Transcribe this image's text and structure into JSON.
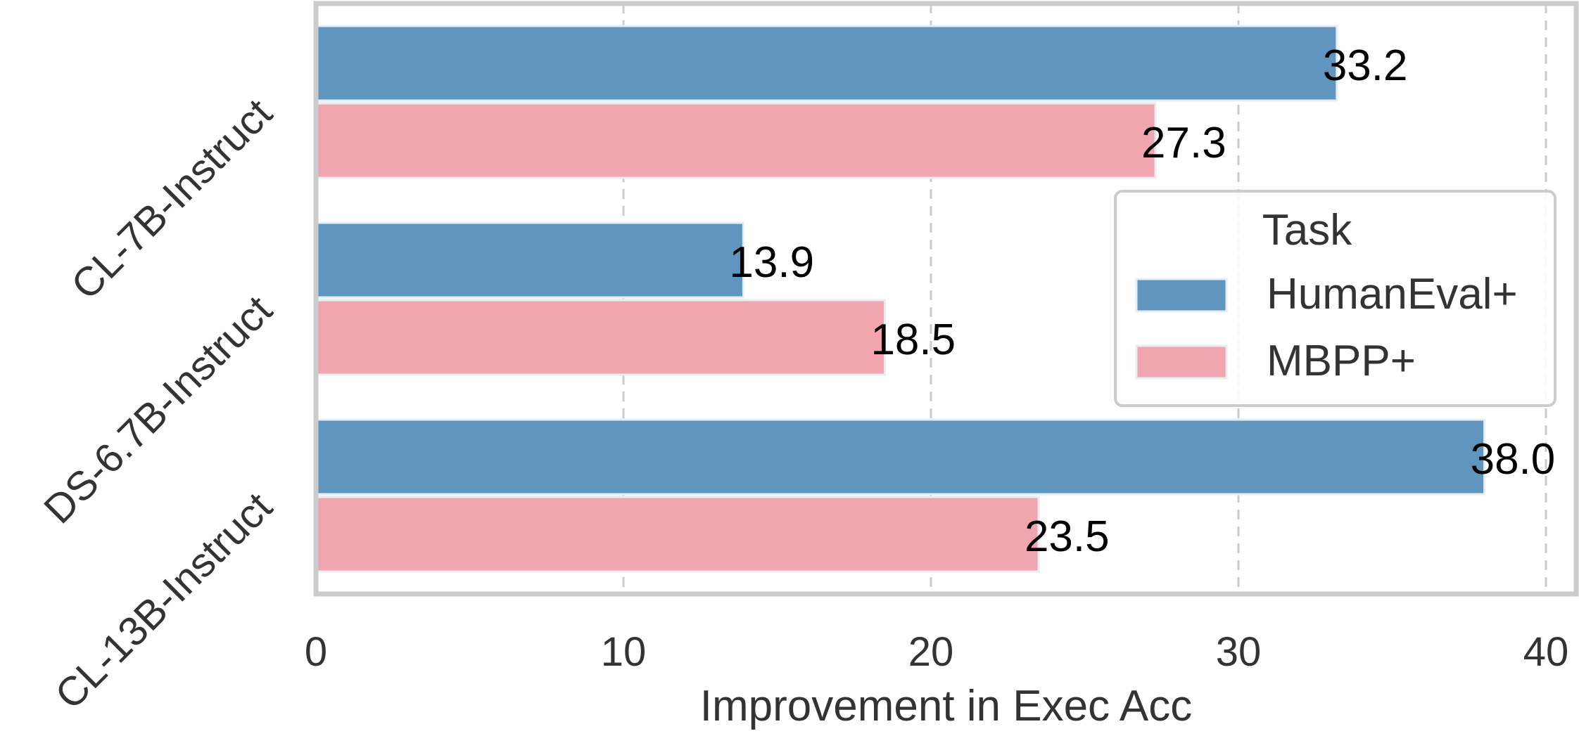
{
  "chart_data": {
    "type": "bar",
    "orientation": "horizontal",
    "categories": [
      "CL-7B-Instruct",
      "DS-6.7B-Instruct",
      "CL-13B-Instruct"
    ],
    "series": [
      {
        "name": "HumanEval+",
        "values": [
          33.2,
          13.9,
          38.0
        ],
        "color": "#5f95bf"
      },
      {
        "name": "MBPP+",
        "values": [
          27.3,
          18.5,
          23.5
        ],
        "color": "#f1a5ae"
      }
    ],
    "value_labels": {
      "HumanEval+": [
        "33.2",
        "13.9",
        "38.0"
      ],
      "MBPP+": [
        "27.3",
        "18.5",
        "23.5"
      ]
    },
    "xlabel": "Improvement in Exec Acc",
    "ylabel": "",
    "xlim": [
      0,
      41
    ],
    "x_ticks": [
      "0",
      "10",
      "20",
      "30",
      "40"
    ],
    "x_tick_values": [
      0,
      10,
      20,
      30,
      40
    ],
    "grid": "vertical dashed",
    "legend": {
      "title": "Task",
      "placement": "center-right"
    },
    "colors": {
      "frame": "#cccccc",
      "grid": "#cccccc",
      "text": "#333333"
    }
  }
}
